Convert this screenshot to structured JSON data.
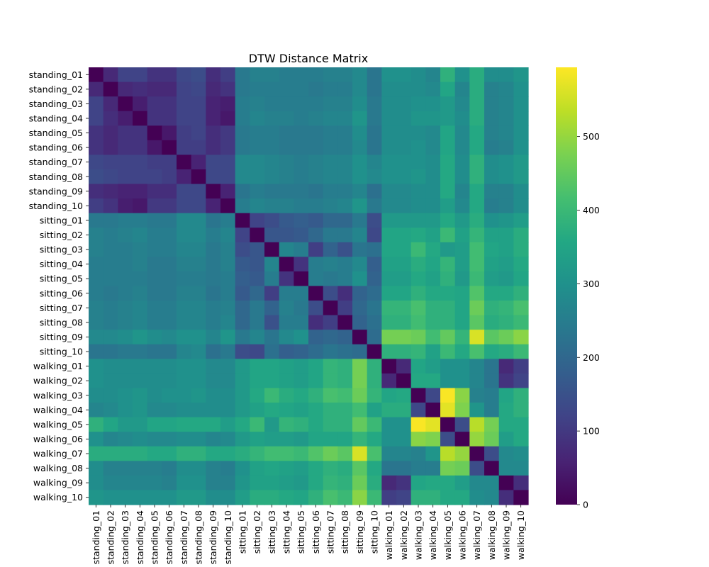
{
  "chart_data": {
    "type": "heatmap",
    "title": "DTW Distance Matrix",
    "xlabel": "",
    "ylabel": "",
    "labels": [
      "standing_01",
      "standing_02",
      "standing_03",
      "standing_04",
      "standing_05",
      "standing_06",
      "standing_07",
      "standing_08",
      "standing_09",
      "standing_10",
      "sitting_01",
      "sitting_02",
      "sitting_03",
      "sitting_04",
      "sitting_05",
      "sitting_06",
      "sitting_07",
      "sitting_08",
      "sitting_09",
      "sitting_10",
      "walking_01",
      "walking_02",
      "walking_03",
      "walking_04",
      "walking_05",
      "walking_06",
      "walking_07",
      "walking_08",
      "walking_09",
      "walking_10"
    ],
    "colormap": "viridis",
    "vmin": 0,
    "vmax": 594,
    "colorbar_ticks": [
      0,
      100,
      200,
      300,
      400,
      500
    ],
    "values": [
      [
        0,
        70,
        120,
        120,
        90,
        90,
        130,
        140,
        80,
        110,
        240,
        260,
        260,
        250,
        250,
        250,
        260,
        260,
        280,
        230,
        300,
        300,
        290,
        270,
        380,
        300,
        370,
        290,
        290,
        310
      ],
      [
        70,
        0,
        70,
        80,
        70,
        70,
        120,
        130,
        70,
        90,
        240,
        250,
        250,
        250,
        250,
        240,
        250,
        250,
        280,
        230,
        290,
        290,
        290,
        280,
        350,
        270,
        370,
        260,
        270,
        300
      ],
      [
        120,
        70,
        0,
        50,
        90,
        90,
        120,
        120,
        60,
        50,
        250,
        260,
        250,
        250,
        250,
        250,
        260,
        260,
        290,
        240,
        290,
        290,
        300,
        300,
        320,
        280,
        370,
        260,
        270,
        300
      ],
      [
        120,
        80,
        50,
        0,
        90,
        90,
        120,
        120,
        60,
        40,
        250,
        270,
        260,
        260,
        250,
        260,
        270,
        270,
        310,
        240,
        290,
        290,
        310,
        310,
        320,
        290,
        370,
        260,
        270,
        300
      ],
      [
        90,
        70,
        90,
        90,
        0,
        40,
        110,
        120,
        80,
        100,
        240,
        250,
        250,
        240,
        240,
        240,
        250,
        250,
        290,
        230,
        290,
        290,
        290,
        280,
        350,
        280,
        360,
        260,
        270,
        300
      ],
      [
        90,
        70,
        90,
        90,
        40,
        0,
        110,
        110,
        80,
        100,
        240,
        250,
        250,
        240,
        240,
        240,
        250,
        250,
        280,
        230,
        290,
        290,
        300,
        280,
        350,
        280,
        360,
        250,
        260,
        300
      ],
      [
        130,
        120,
        120,
        120,
        110,
        110,
        0,
        60,
        130,
        130,
        280,
        280,
        270,
        260,
        250,
        260,
        270,
        270,
        300,
        270,
        300,
        300,
        300,
        290,
        360,
        290,
        380,
        290,
        300,
        320
      ],
      [
        140,
        130,
        120,
        120,
        120,
        110,
        60,
        0,
        130,
        130,
        280,
        280,
        270,
        260,
        250,
        260,
        270,
        270,
        300,
        280,
        300,
        300,
        310,
        290,
        360,
        290,
        380,
        290,
        300,
        320
      ],
      [
        80,
        70,
        60,
        60,
        80,
        80,
        130,
        130,
        0,
        60,
        230,
        250,
        240,
        240,
        240,
        230,
        250,
        250,
        270,
        220,
        280,
        280,
        290,
        290,
        360,
        270,
        360,
        260,
        260,
        290
      ],
      [
        110,
        90,
        50,
        40,
        100,
        100,
        130,
        130,
        60,
        0,
        250,
        270,
        260,
        260,
        250,
        250,
        260,
        270,
        310,
        240,
        280,
        280,
        290,
        290,
        330,
        280,
        360,
        250,
        260,
        290
      ],
      [
        240,
        240,
        250,
        250,
        240,
        240,
        280,
        280,
        230,
        250,
        0,
        120,
        140,
        170,
        180,
        170,
        200,
        200,
        240,
        140,
        320,
        320,
        320,
        320,
        360,
        320,
        370,
        300,
        310,
        330
      ],
      [
        260,
        250,
        260,
        270,
        250,
        250,
        280,
        280,
        250,
        270,
        120,
        0,
        160,
        160,
        170,
        200,
        240,
        240,
        270,
        130,
        350,
        350,
        360,
        340,
        400,
        340,
        390,
        340,
        340,
        370
      ],
      [
        260,
        250,
        250,
        260,
        250,
        250,
        270,
        270,
        240,
        260,
        140,
        160,
        0,
        270,
        250,
        110,
        190,
        150,
        230,
        220,
        350,
        350,
        400,
        360,
        320,
        330,
        410,
        350,
        340,
        370
      ],
      [
        250,
        250,
        250,
        260,
        240,
        240,
        260,
        260,
        240,
        260,
        170,
        160,
        270,
        0,
        90,
        250,
        260,
        250,
        280,
        180,
        340,
        340,
        370,
        350,
        390,
        330,
        410,
        340,
        330,
        360
      ],
      [
        250,
        250,
        250,
        250,
        240,
        240,
        250,
        250,
        240,
        250,
        180,
        170,
        250,
        90,
        0,
        250,
        240,
        250,
        300,
        190,
        330,
        330,
        360,
        340,
        380,
        320,
        400,
        330,
        320,
        350
      ],
      [
        250,
        240,
        250,
        260,
        240,
        240,
        260,
        260,
        230,
        250,
        170,
        200,
        110,
        250,
        250,
        0,
        140,
        80,
        190,
        210,
        350,
        350,
        380,
        360,
        360,
        350,
        430,
        360,
        360,
        380
      ],
      [
        260,
        250,
        260,
        270,
        250,
        250,
        270,
        270,
        250,
        260,
        200,
        240,
        190,
        260,
        240,
        140,
        0,
        110,
        200,
        230,
        390,
        390,
        420,
        380,
        380,
        350,
        460,
        380,
        390,
        420
      ],
      [
        260,
        250,
        260,
        270,
        250,
        250,
        270,
        270,
        250,
        270,
        200,
        240,
        150,
        250,
        250,
        80,
        110,
        0,
        190,
        220,
        380,
        380,
        410,
        380,
        380,
        350,
        440,
        370,
        380,
        400
      ],
      [
        280,
        280,
        290,
        310,
        290,
        280,
        300,
        300,
        270,
        310,
        240,
        270,
        230,
        280,
        300,
        190,
        200,
        190,
        0,
        210,
        470,
        470,
        460,
        410,
        450,
        390,
        560,
        440,
        460,
        490
      ],
      [
        230,
        230,
        240,
        240,
        230,
        230,
        270,
        280,
        220,
        240,
        140,
        130,
        220,
        180,
        190,
        210,
        230,
        220,
        210,
        0,
        380,
        380,
        390,
        340,
        400,
        360,
        420,
        360,
        370,
        400
      ],
      [
        300,
        290,
        290,
        290,
        290,
        290,
        300,
        300,
        280,
        280,
        320,
        350,
        350,
        340,
        330,
        350,
        390,
        380,
        470,
        380,
        0,
        70,
        350,
        330,
        300,
        300,
        270,
        230,
        70,
        110
      ],
      [
        300,
        290,
        290,
        290,
        290,
        290,
        300,
        300,
        280,
        280,
        320,
        350,
        350,
        340,
        330,
        350,
        390,
        380,
        470,
        380,
        70,
        0,
        360,
        360,
        300,
        300,
        270,
        230,
        90,
        120
      ],
      [
        290,
        290,
        300,
        310,
        290,
        300,
        300,
        310,
        290,
        290,
        320,
        360,
        400,
        370,
        360,
        380,
        420,
        410,
        460,
        390,
        350,
        360,
        0,
        130,
        590,
        490,
        260,
        250,
        350,
        380
      ],
      [
        270,
        280,
        300,
        310,
        280,
        280,
        290,
        290,
        290,
        290,
        320,
        340,
        360,
        350,
        340,
        360,
        380,
        380,
        410,
        340,
        370,
        370,
        130,
        0,
        570,
        480,
        310,
        250,
        360,
        380
      ],
      [
        380,
        350,
        320,
        320,
        350,
        350,
        360,
        360,
        360,
        330,
        360,
        400,
        320,
        390,
        380,
        360,
        380,
        380,
        450,
        400,
        300,
        300,
        590,
        570,
        0,
        140,
        530,
        470,
        360,
        360
      ],
      [
        300,
        270,
        280,
        290,
        280,
        280,
        290,
        290,
        270,
        280,
        320,
        340,
        330,
        330,
        320,
        350,
        350,
        350,
        390,
        360,
        300,
        300,
        490,
        480,
        140,
        0,
        500,
        460,
        330,
        360
      ],
      [
        370,
        370,
        370,
        370,
        360,
        360,
        380,
        380,
        360,
        360,
        370,
        390,
        410,
        410,
        400,
        430,
        460,
        440,
        560,
        420,
        270,
        270,
        260,
        310,
        530,
        500,
        0,
        140,
        280,
        290
      ],
      [
        290,
        260,
        260,
        260,
        260,
        250,
        290,
        290,
        260,
        250,
        300,
        340,
        350,
        340,
        330,
        360,
        380,
        370,
        440,
        360,
        230,
        230,
        250,
        250,
        470,
        460,
        140,
        0,
        280,
        280
      ],
      [
        290,
        270,
        270,
        270,
        270,
        260,
        300,
        300,
        260,
        260,
        310,
        340,
        340,
        330,
        320,
        360,
        390,
        380,
        460,
        370,
        70,
        90,
        350,
        360,
        360,
        330,
        280,
        280,
        0,
        80
      ],
      [
        310,
        300,
        300,
        300,
        300,
        300,
        320,
        320,
        290,
        290,
        330,
        370,
        370,
        360,
        350,
        380,
        420,
        400,
        490,
        400,
        110,
        120,
        380,
        380,
        360,
        360,
        290,
        280,
        80,
        0
      ]
    ]
  }
}
